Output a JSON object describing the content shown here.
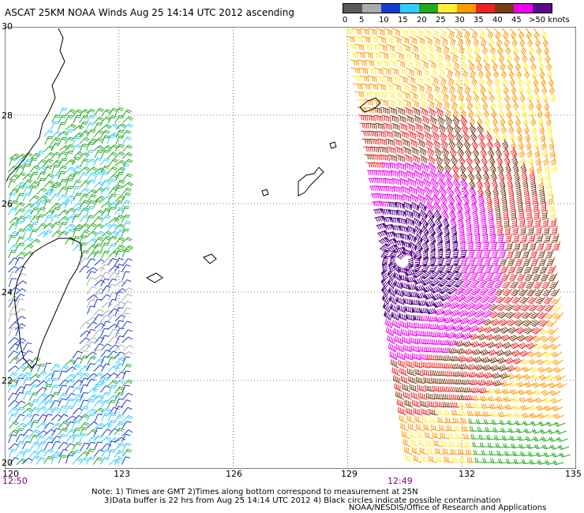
{
  "title": "ASCAT 25KM NOAA Winds Aug 25 14:14 UTC 2012 ascending",
  "legend": {
    "labels": [
      "0",
      "5",
      "10",
      "15",
      "20",
      "25",
      "30",
      "35",
      "40",
      "45",
      ">50 knots"
    ],
    "colors": [
      "#5a5a5a",
      "#aaaaaa",
      "#1a3ccf",
      "#33ccff",
      "#22aa22",
      "#ffee33",
      "#ff9900",
      "#ee2222",
      "#7a3c14",
      "#ee00ee",
      "#5a0a8a"
    ]
  },
  "map": {
    "lat_labels": [
      "30",
      "28",
      "26",
      "24",
      "22",
      "20"
    ],
    "lon_labels": [
      "120",
      "123",
      "126",
      "129",
      "132",
      "135"
    ],
    "pass_times": [
      "12:50",
      "12:49"
    ],
    "typhoon_center": {
      "lat": 24.7,
      "lon": 130.5
    },
    "gridlines": true,
    "land_outline": "black"
  },
  "notes": {
    "line1": "Note: 1) Times are GMT 2)Times along bottom correspond to measurement at 25N",
    "line2": "3)Data buffer is 22 hrs from Aug 25 14:14 UTC 2012 4) Black circles indicate possible contamination",
    "credit": "NOAA/NESDIS/Office of Research and Applications"
  }
}
